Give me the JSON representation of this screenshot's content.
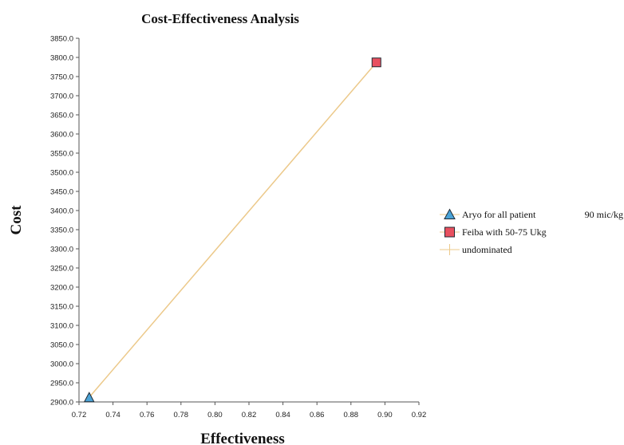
{
  "colors": {
    "line": "#ecc98a",
    "triangle_fill": "#4ba3d6",
    "square_fill": "#e8505f",
    "axis": "#555555",
    "marker_stroke": "#1f2a33"
  },
  "chart_data": {
    "type": "scatter",
    "title": "Cost-Effectiveness Analysis",
    "xlabel": "Effectiveness",
    "ylabel": "Cost",
    "xlim": [
      0.72,
      0.92
    ],
    "ylim": [
      2900.0,
      3850.0
    ],
    "x_ticks": [
      "0.72",
      "0.74",
      "0.76",
      "0.78",
      "0.80",
      "0.82",
      "0.84",
      "0.86",
      "0.88",
      "0.90",
      "0.92"
    ],
    "y_ticks": [
      "2900.0",
      "2950.0",
      "3000.0",
      "3050.0",
      "3100.0",
      "3150.0",
      "3200.0",
      "3250.0",
      "3300.0",
      "3350.0",
      "3400.0",
      "3450.0",
      "3500.0",
      "3550.0",
      "3600.0",
      "3650.0",
      "3700.0",
      "3750.0",
      "3800.0",
      "3850.0"
    ],
    "series": [
      {
        "name": "Aryo for all patient",
        "extra_label": "90 mic/kg",
        "marker": "triangle-icon",
        "points": [
          {
            "x": 0.726,
            "y": 2912
          }
        ]
      },
      {
        "name": "Feiba with 50-75 Ukg",
        "marker": "square-icon",
        "points": [
          {
            "x": 0.895,
            "y": 3787
          }
        ]
      }
    ],
    "undominated_line": {
      "name": "undominated",
      "points": [
        {
          "x": 0.726,
          "y": 2912
        },
        {
          "x": 0.895,
          "y": 3787
        }
      ]
    },
    "legend_placement": "right",
    "grid": false
  }
}
